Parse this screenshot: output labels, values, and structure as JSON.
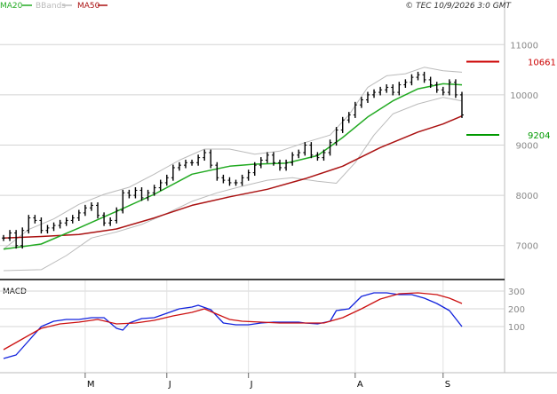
{
  "header": {
    "legend": [
      {
        "label": "MA20",
        "color": "#22aa22"
      },
      {
        "label": "BBands",
        "color": "#bbbbbb"
      },
      {
        "label": "MA50",
        "color": "#aa1111"
      }
    ],
    "copyright": "© TEC 10/9/2026 3:0 GMT"
  },
  "chart_data": [
    {
      "type": "line",
      "title": "",
      "ylim": [
        6500,
        11500
      ],
      "y_ticks": [
        {
          "value": 7000,
          "label": "7000"
        },
        {
          "value": 8000,
          "label": "8000"
        },
        {
          "value": 9000,
          "label": "9000"
        },
        {
          "value": 10000,
          "label": "10000"
        },
        {
          "value": 11000,
          "label": "11000"
        }
      ],
      "grid": true,
      "x_ticks": [
        {
          "month": "M",
          "week": 13
        },
        {
          "month": "J",
          "week": 26
        },
        {
          "month": "J",
          "week": 39
        },
        {
          "month": "A",
          "week": 56
        },
        {
          "month": "S",
          "week": 70
        }
      ],
      "x_weeks": 74,
      "price_series": [
        [
          0,
          7150
        ],
        [
          1,
          7250
        ],
        [
          2,
          7000
        ],
        [
          3,
          7300
        ],
        [
          4,
          7550
        ],
        [
          5,
          7500
        ],
        [
          6,
          7300
        ],
        [
          7,
          7350
        ],
        [
          8,
          7400
        ],
        [
          9,
          7450
        ],
        [
          10,
          7500
        ],
        [
          11,
          7550
        ],
        [
          12,
          7650
        ],
        [
          13,
          7750
        ],
        [
          14,
          7800
        ],
        [
          15,
          7600
        ],
        [
          16,
          7450
        ],
        [
          17,
          7500
        ],
        [
          18,
          7700
        ],
        [
          19,
          8050
        ],
        [
          20,
          8000
        ],
        [
          21,
          8100
        ],
        [
          22,
          7950
        ],
        [
          23,
          8050
        ],
        [
          24,
          8150
        ],
        [
          25,
          8250
        ],
        [
          26,
          8350
        ],
        [
          27,
          8550
        ],
        [
          28,
          8600
        ],
        [
          29,
          8650
        ],
        [
          30,
          8650
        ],
        [
          31,
          8750
        ],
        [
          32,
          8850
        ],
        [
          33,
          8600
        ],
        [
          34,
          8350
        ],
        [
          35,
          8300
        ],
        [
          36,
          8250
        ],
        [
          37,
          8250
        ],
        [
          38,
          8350
        ],
        [
          39,
          8450
        ],
        [
          40,
          8600
        ],
        [
          41,
          8700
        ],
        [
          42,
          8800
        ],
        [
          43,
          8650
        ],
        [
          44,
          8550
        ],
        [
          45,
          8650
        ],
        [
          46,
          8800
        ],
        [
          47,
          8850
        ],
        [
          48,
          9000
        ],
        [
          49,
          8800
        ],
        [
          50,
          8750
        ],
        [
          51,
          8850
        ],
        [
          52,
          9050
        ],
        [
          53,
          9300
        ],
        [
          54,
          9500
        ],
        [
          55,
          9600
        ],
        [
          56,
          9800
        ],
        [
          57,
          9900
        ],
        [
          58,
          10000
        ],
        [
          59,
          10050
        ],
        [
          60,
          10100
        ],
        [
          61,
          10150
        ],
        [
          62,
          10050
        ],
        [
          63,
          10200
        ],
        [
          64,
          10250
        ],
        [
          65,
          10350
        ],
        [
          66,
          10400
        ],
        [
          67,
          10300
        ],
        [
          68,
          10200
        ],
        [
          69,
          10100
        ],
        [
          70,
          10050
        ],
        [
          71,
          10250
        ],
        [
          72,
          10000
        ],
        [
          73,
          9600
        ]
      ],
      "ma20": [
        [
          0,
          6930
        ],
        [
          6,
          7030
        ],
        [
          12,
          7350
        ],
        [
          18,
          7680
        ],
        [
          24,
          8020
        ],
        [
          30,
          8420
        ],
        [
          36,
          8580
        ],
        [
          40,
          8620
        ],
        [
          45,
          8640
        ],
        [
          50,
          8790
        ],
        [
          54,
          9150
        ],
        [
          58,
          9560
        ],
        [
          62,
          9880
        ],
        [
          66,
          10120
        ],
        [
          70,
          10220
        ],
        [
          73,
          10200
        ]
      ],
      "ma50": [
        [
          0,
          7150
        ],
        [
          6,
          7180
        ],
        [
          12,
          7220
        ],
        [
          18,
          7330
        ],
        [
          24,
          7550
        ],
        [
          30,
          7800
        ],
        [
          36,
          7970
        ],
        [
          42,
          8120
        ],
        [
          48,
          8330
        ],
        [
          54,
          8580
        ],
        [
          60,
          8950
        ],
        [
          66,
          9260
        ],
        [
          70,
          9420
        ],
        [
          73,
          9580
        ]
      ],
      "bb_upper": [
        [
          0,
          6930
        ],
        [
          4,
          7320
        ],
        [
          8,
          7530
        ],
        [
          12,
          7820
        ],
        [
          16,
          8020
        ],
        [
          20,
          8160
        ],
        [
          24,
          8420
        ],
        [
          28,
          8700
        ],
        [
          32,
          8920
        ],
        [
          36,
          8920
        ],
        [
          40,
          8820
        ],
        [
          44,
          8880
        ],
        [
          48,
          9050
        ],
        [
          52,
          9200
        ],
        [
          55,
          9600
        ],
        [
          58,
          10150
        ],
        [
          61,
          10380
        ],
        [
          64,
          10420
        ],
        [
          67,
          10550
        ],
        [
          70,
          10480
        ],
        [
          73,
          10450
        ]
      ],
      "bb_lower": [
        [
          0,
          6500
        ],
        [
          6,
          6520
        ],
        [
          10,
          6800
        ],
        [
          14,
          7150
        ],
        [
          18,
          7270
        ],
        [
          22,
          7420
        ],
        [
          26,
          7640
        ],
        [
          30,
          7880
        ],
        [
          34,
          8050
        ],
        [
          38,
          8180
        ],
        [
          42,
          8300
        ],
        [
          46,
          8350
        ],
        [
          50,
          8280
        ],
        [
          53,
          8240
        ],
        [
          56,
          8650
        ],
        [
          59,
          9200
        ],
        [
          62,
          9620
        ],
        [
          66,
          9820
        ],
        [
          70,
          9950
        ],
        [
          73,
          9880
        ]
      ],
      "markers": [
        {
          "label": "10661",
          "value": 10661,
          "color": "#cc0000"
        },
        {
          "label": "9204",
          "value": 9204,
          "color": "#009900"
        }
      ]
    },
    {
      "type": "line",
      "title": "MACD",
      "ylim": [
        -120,
        330
      ],
      "y_ticks": [
        {
          "value": 100,
          "label": "100"
        },
        {
          "value": 200,
          "label": "200"
        },
        {
          "value": 300,
          "label": "300"
        }
      ],
      "series": [
        {
          "color": "#1122dd",
          "points": [
            [
              0,
              -80
            ],
            [
              2,
              -60
            ],
            [
              4,
              20
            ],
            [
              6,
              100
            ],
            [
              8,
              130
            ],
            [
              10,
              140
            ],
            [
              12,
              140
            ],
            [
              14,
              150
            ],
            [
              16,
              150
            ],
            [
              18,
              90
            ],
            [
              19,
              80
            ],
            [
              20,
              120
            ],
            [
              22,
              145
            ],
            [
              24,
              150
            ],
            [
              26,
              175
            ],
            [
              28,
              200
            ],
            [
              30,
              210
            ],
            [
              31,
              220
            ],
            [
              33,
              195
            ],
            [
              35,
              120
            ],
            [
              37,
              110
            ],
            [
              39,
              110
            ],
            [
              41,
              120
            ],
            [
              43,
              125
            ],
            [
              45,
              125
            ],
            [
              47,
              125
            ],
            [
              48,
              120
            ],
            [
              50,
              115
            ],
            [
              52,
              130
            ],
            [
              53,
              190
            ],
            [
              55,
              200
            ],
            [
              57,
              270
            ],
            [
              59,
              290
            ],
            [
              61,
              290
            ],
            [
              63,
              280
            ],
            [
              65,
              280
            ],
            [
              67,
              260
            ],
            [
              69,
              230
            ],
            [
              71,
              190
            ],
            [
              73,
              100
            ]
          ]
        },
        {
          "color": "#cc1111",
          "points": [
            [
              0,
              -30
            ],
            [
              3,
              30
            ],
            [
              6,
              90
            ],
            [
              9,
              115
            ],
            [
              12,
              125
            ],
            [
              15,
              140
            ],
            [
              18,
              115
            ],
            [
              21,
              120
            ],
            [
              24,
              135
            ],
            [
              27,
              160
            ],
            [
              30,
              180
            ],
            [
              32,
              200
            ],
            [
              34,
              170
            ],
            [
              36,
              140
            ],
            [
              38,
              130
            ],
            [
              41,
              125
            ],
            [
              44,
              120
            ],
            [
              48,
              120
            ],
            [
              51,
              120
            ],
            [
              54,
              150
            ],
            [
              57,
              200
            ],
            [
              60,
              255
            ],
            [
              63,
              285
            ],
            [
              66,
              290
            ],
            [
              69,
              280
            ],
            [
              71,
              260
            ],
            [
              73,
              230
            ]
          ]
        }
      ]
    }
  ]
}
